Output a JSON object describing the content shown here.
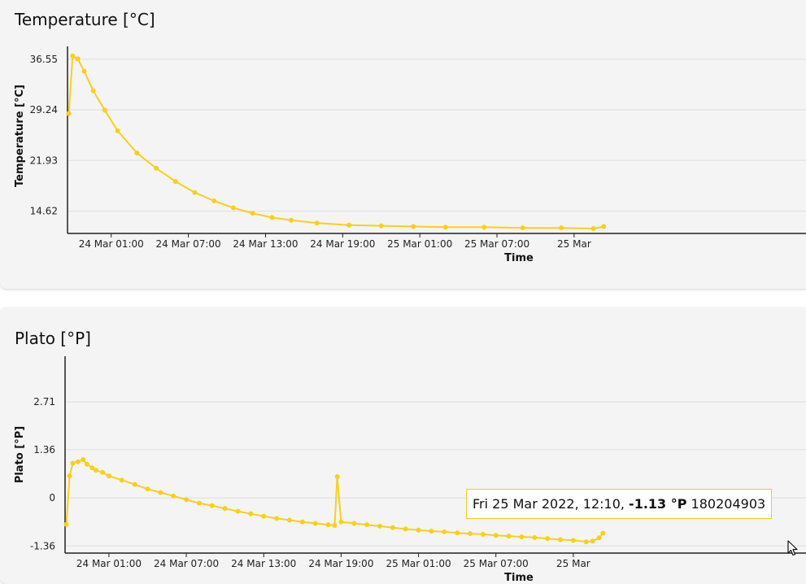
{
  "charts": {
    "temperature": {
      "title": "Temperature [°C]"
    },
    "plato": {
      "title": "Plato [°P]"
    }
  },
  "tooltip": {
    "date": "Fri 25 Mar 2022, 12:10, ",
    "value": "-1.13 °P",
    "id": " 180204903"
  },
  "colors": {
    "series": "#f7d117",
    "grid": "#dedede",
    "axis": "#222222"
  },
  "icons": {
    "cursor": "mouse-pointer-icon"
  },
  "chart_data": [
    {
      "type": "line",
      "title": "Temperature [°C]",
      "xlabel": "Time",
      "ylabel": "Temperature [°C]",
      "x_unit": "hours",
      "x_range": [
        -2.4,
        57.5
      ],
      "ylim": [
        11.4,
        38.4
      ],
      "yticks": [
        14.62,
        21.93,
        29.24,
        36.55
      ],
      "xticks": [
        {
          "t": 1,
          "label": "24 Mar 01:00"
        },
        {
          "t": 7,
          "label": "24 Mar 07:00"
        },
        {
          "t": 13,
          "label": "24 Mar 13:00"
        },
        {
          "t": 19,
          "label": "24 Mar 19:00"
        },
        {
          "t": 25,
          "label": "25 Mar 01:00"
        },
        {
          "t": 31,
          "label": "25 Mar 07:00"
        },
        {
          "t": 37,
          "label": "25 Mar"
        }
      ],
      "grid": true,
      "legend": "none",
      "series": [
        {
          "points": [
            [
              -2.3,
              28.7
            ],
            [
              -2.0,
              37.0
            ],
            [
              -1.6,
              36.6
            ],
            [
              -1.1,
              34.8
            ],
            [
              -0.4,
              32.0
            ],
            [
              0.5,
              29.2
            ],
            [
              1.5,
              26.2
            ],
            [
              3.0,
              23.0
            ],
            [
              4.5,
              20.8
            ],
            [
              6.0,
              18.9
            ],
            [
              7.5,
              17.3
            ],
            [
              9.0,
              16.1
            ],
            [
              10.5,
              15.1
            ],
            [
              12.0,
              14.3
            ],
            [
              13.5,
              13.7
            ],
            [
              15.0,
              13.3
            ],
            [
              17.0,
              12.9
            ],
            [
              19.5,
              12.6
            ],
            [
              22.0,
              12.5
            ],
            [
              24.5,
              12.4
            ],
            [
              27.0,
              12.3
            ],
            [
              30.0,
              12.3
            ],
            [
              33.0,
              12.2
            ],
            [
              36.0,
              12.2
            ],
            [
              38.5,
              12.1
            ],
            [
              39.3,
              12.4
            ]
          ]
        }
      ]
    },
    {
      "type": "line",
      "title": "Plato [°P]",
      "xlabel": "Time",
      "ylabel": "Plato [°P]",
      "x_unit": "hours",
      "x_range": [
        -2.4,
        57.5
      ],
      "ylim": [
        -1.56,
        4.0
      ],
      "yticks": [
        -1.36,
        0,
        1.36,
        2.71
      ],
      "xticks": [
        {
          "t": 1,
          "label": "24 Mar 01:00"
        },
        {
          "t": 7,
          "label": "24 Mar 07:00"
        },
        {
          "t": 13,
          "label": "24 Mar 13:00"
        },
        {
          "t": 19,
          "label": "24 Mar 19:00"
        },
        {
          "t": 25,
          "label": "25 Mar 01:00"
        },
        {
          "t": 31,
          "label": "25 Mar 07:00"
        },
        {
          "t": 37,
          "label": "25 Mar"
        }
      ],
      "grid": true,
      "legend": "none",
      "series": [
        {
          "points": [
            [
              -2.3,
              -0.75
            ],
            [
              -2.05,
              0.62
            ],
            [
              -1.8,
              0.98
            ],
            [
              -1.4,
              1.02
            ],
            [
              -1.0,
              1.08
            ],
            [
              -0.7,
              0.95
            ],
            [
              -0.3,
              0.85
            ],
            [
              0.0,
              0.78
            ],
            [
              0.5,
              0.72
            ],
            [
              1.0,
              0.62
            ],
            [
              2.0,
              0.5
            ],
            [
              3.0,
              0.38
            ],
            [
              4.0,
              0.25
            ],
            [
              5.0,
              0.15
            ],
            [
              6.0,
              0.05
            ],
            [
              7.0,
              -0.05
            ],
            [
              8.0,
              -0.15
            ],
            [
              9.0,
              -0.22
            ],
            [
              10.0,
              -0.3
            ],
            [
              11.0,
              -0.38
            ],
            [
              12.0,
              -0.45
            ],
            [
              13.0,
              -0.52
            ],
            [
              14.0,
              -0.58
            ],
            [
              15.0,
              -0.63
            ],
            [
              16.0,
              -0.68
            ],
            [
              17.0,
              -0.72
            ],
            [
              18.0,
              -0.76
            ],
            [
              18.5,
              -0.78
            ],
            [
              18.7,
              0.6
            ],
            [
              19.0,
              -0.68
            ],
            [
              20.0,
              -0.72
            ],
            [
              21.0,
              -0.76
            ],
            [
              22.0,
              -0.8
            ],
            [
              23.0,
              -0.84
            ],
            [
              24.0,
              -0.88
            ],
            [
              25.0,
              -0.91
            ],
            [
              26.0,
              -0.94
            ],
            [
              27.0,
              -0.96
            ],
            [
              28.0,
              -0.99
            ],
            [
              29.0,
              -1.01
            ],
            [
              30.0,
              -1.03
            ],
            [
              31.0,
              -1.06
            ],
            [
              32.0,
              -1.08
            ],
            [
              33.0,
              -1.1
            ],
            [
              34.0,
              -1.12
            ],
            [
              35.0,
              -1.15
            ],
            [
              36.0,
              -1.18
            ],
            [
              37.0,
              -1.2
            ],
            [
              38.0,
              -1.24
            ],
            [
              38.5,
              -1.22
            ],
            [
              39.0,
              -1.13
            ],
            [
              39.3,
              -1.0
            ]
          ]
        }
      ]
    }
  ]
}
